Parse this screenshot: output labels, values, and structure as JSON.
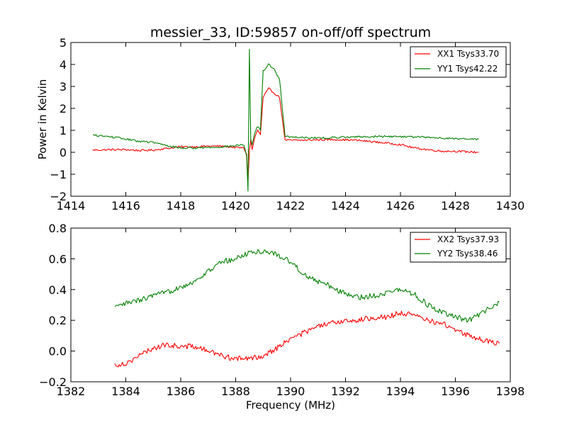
{
  "chart_data": [
    {
      "type": "line",
      "title": "messier_33, ID:59857 on-off/off spectrum",
      "xlabel": "",
      "ylabel": "Power in Kelvin",
      "xlim": [
        1414,
        1430
      ],
      "ylim": [
        -2,
        5
      ],
      "xticks": [
        "1414",
        "1416",
        "1418",
        "1420",
        "1422",
        "1424",
        "1426",
        "1428",
        "1430"
      ],
      "yticks": [
        "−2",
        "−1",
        "0",
        "1",
        "2",
        "3",
        "4",
        "5"
      ],
      "grid": false,
      "legend_position": "top-right",
      "series": [
        {
          "name": "XX1 Tsys33.70",
          "color": "#ff0000",
          "x": [
            1414.8,
            1415.5,
            1416.0,
            1416.5,
            1417.0,
            1417.5,
            1418.0,
            1418.5,
            1419.0,
            1419.5,
            1420.0,
            1420.3,
            1420.4,
            1420.45,
            1420.5,
            1420.55,
            1420.6,
            1420.7,
            1420.8,
            1420.9,
            1421.0,
            1421.2,
            1421.4,
            1421.6,
            1421.7,
            1421.8,
            1422.0,
            1422.5,
            1423.0,
            1423.5,
            1424.0,
            1424.5,
            1425.0,
            1425.5,
            1426.0,
            1426.5,
            1427.0,
            1427.5,
            1428.0,
            1428.5,
            1428.85
          ],
          "y": [
            0.1,
            0.12,
            0.12,
            0.08,
            0.1,
            0.18,
            0.25,
            0.25,
            0.28,
            0.28,
            0.22,
            0.2,
            -0.1,
            -1.3,
            0.05,
            0.6,
            0.1,
            0.7,
            1.0,
            0.8,
            2.5,
            2.9,
            2.7,
            2.5,
            1.5,
            0.55,
            0.55,
            0.55,
            0.57,
            0.58,
            0.57,
            0.54,
            0.48,
            0.42,
            0.35,
            0.2,
            0.12,
            0.05,
            0.05,
            0.02,
            0.0
          ]
        },
        {
          "name": "YY1 Tsys42.22",
          "color": "#008000",
          "x": [
            1414.8,
            1415.5,
            1416.0,
            1416.5,
            1417.0,
            1417.5,
            1418.0,
            1418.5,
            1419.0,
            1419.5,
            1420.0,
            1420.3,
            1420.4,
            1420.45,
            1420.5,
            1420.55,
            1420.6,
            1420.7,
            1420.8,
            1420.9,
            1421.0,
            1421.2,
            1421.4,
            1421.6,
            1421.7,
            1421.8,
            1422.0,
            1422.5,
            1423.0,
            1423.5,
            1424.0,
            1424.5,
            1425.0,
            1425.5,
            1426.0,
            1426.5,
            1427.0,
            1427.5,
            1428.0,
            1428.5,
            1428.85
          ],
          "y": [
            0.78,
            0.7,
            0.6,
            0.5,
            0.45,
            0.3,
            0.2,
            0.2,
            0.22,
            0.25,
            0.3,
            0.35,
            -0.2,
            -1.8,
            4.7,
            0.6,
            0.3,
            0.9,
            1.2,
            1.0,
            3.7,
            4.0,
            3.8,
            3.3,
            2.0,
            0.75,
            0.7,
            0.68,
            0.65,
            0.66,
            0.7,
            0.7,
            0.72,
            0.72,
            0.72,
            0.7,
            0.68,
            0.65,
            0.62,
            0.6,
            0.6
          ]
        }
      ]
    },
    {
      "type": "line",
      "title": "",
      "xlabel": "Frequency (MHz)",
      "ylabel": "",
      "xlim": [
        1382,
        1398
      ],
      "ylim": [
        -0.2,
        0.8
      ],
      "xticks": [
        "1382",
        "1384",
        "1386",
        "1388",
        "1390",
        "1392",
        "1394",
        "1396",
        "1398"
      ],
      "yticks": [
        "−0.2",
        "0.0",
        "0.2",
        "0.4",
        "0.6",
        "0.8"
      ],
      "grid": false,
      "legend_position": "top-right",
      "series": [
        {
          "name": "XX2 Tsys37.93",
          "color": "#ff0000",
          "x": [
            1383.6,
            1384.0,
            1384.5,
            1385.0,
            1385.5,
            1386.0,
            1386.5,
            1387.0,
            1387.5,
            1388.0,
            1388.5,
            1389.0,
            1389.5,
            1390.0,
            1390.5,
            1391.0,
            1391.5,
            1392.0,
            1392.5,
            1393.0,
            1393.5,
            1394.0,
            1394.5,
            1395.0,
            1395.5,
            1396.0,
            1396.5,
            1397.0,
            1397.6
          ],
          "y": [
            -0.09,
            -0.08,
            -0.03,
            0.02,
            0.04,
            0.03,
            0.03,
            0.0,
            -0.03,
            -0.05,
            -0.05,
            -0.03,
            0.02,
            0.08,
            0.12,
            0.16,
            0.18,
            0.2,
            0.2,
            0.22,
            0.22,
            0.25,
            0.23,
            0.2,
            0.18,
            0.14,
            0.1,
            0.07,
            0.05
          ]
        },
        {
          "name": "YY2 Tsys38.46",
          "color": "#008000",
          "x": [
            1383.6,
            1384.0,
            1384.5,
            1385.0,
            1385.5,
            1386.0,
            1386.5,
            1387.0,
            1387.5,
            1388.0,
            1388.5,
            1389.0,
            1389.5,
            1390.0,
            1390.5,
            1391.0,
            1391.5,
            1392.0,
            1392.5,
            1393.0,
            1393.5,
            1394.0,
            1394.5,
            1395.0,
            1395.5,
            1396.0,
            1396.5,
            1397.0,
            1397.6
          ],
          "y": [
            0.28,
            0.31,
            0.33,
            0.36,
            0.38,
            0.42,
            0.45,
            0.52,
            0.58,
            0.6,
            0.64,
            0.65,
            0.63,
            0.58,
            0.5,
            0.45,
            0.42,
            0.37,
            0.35,
            0.36,
            0.38,
            0.4,
            0.37,
            0.3,
            0.25,
            0.22,
            0.2,
            0.25,
            0.32
          ]
        }
      ]
    }
  ]
}
